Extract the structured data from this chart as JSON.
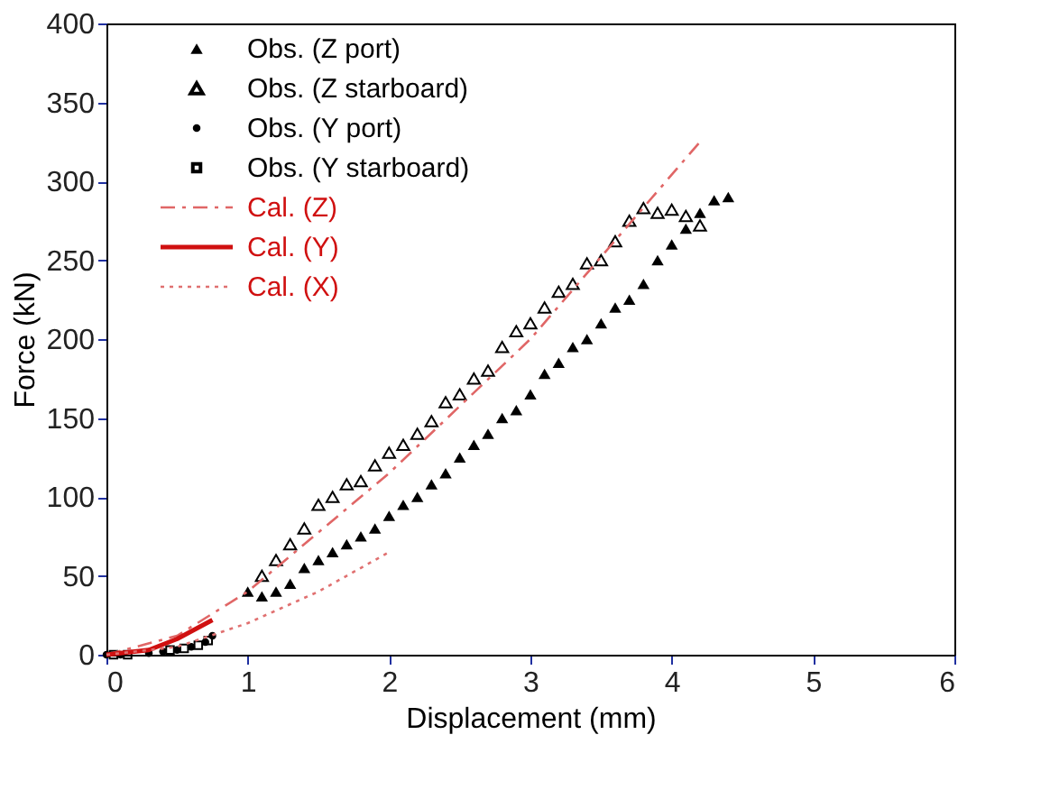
{
  "chart_data": {
    "type": "scatter",
    "xlabel": "Displacement (mm)",
    "ylabel": "Force (kN)",
    "xlim": [
      0,
      6
    ],
    "xticks": [
      0,
      1,
      2,
      3,
      4,
      5,
      6
    ],
    "ylim": [
      0,
      400
    ],
    "yticks": [
      0,
      50,
      100,
      150,
      200,
      250,
      300,
      350,
      400
    ],
    "grid": false,
    "legend": "top left",
    "series": [
      {
        "name": "Obs. (Z port)",
        "marker": "triangle",
        "color": "#000000",
        "x": [
          1.0,
          1.1,
          1.2,
          1.3,
          1.4,
          1.5,
          1.6,
          1.7,
          1.8,
          1.9,
          2.0,
          2.1,
          2.2,
          2.3,
          2.4,
          2.5,
          2.6,
          2.7,
          2.8,
          2.9,
          3.0,
          3.1,
          3.2,
          3.3,
          3.4,
          3.5,
          3.6,
          3.7,
          3.8,
          3.9,
          4.0,
          4.1,
          4.2,
          4.3,
          4.4
        ],
        "values": [
          40,
          37,
          40,
          45,
          55,
          60,
          65,
          70,
          75,
          80,
          88,
          95,
          100,
          108,
          115,
          125,
          133,
          140,
          150,
          155,
          165,
          178,
          185,
          195,
          200,
          210,
          220,
          225,
          235,
          250,
          260,
          270,
          280,
          288,
          290
        ]
      },
      {
        "name": "Obs. (Z starboard)",
        "marker": "triangle_open",
        "color": "#000000",
        "x": [
          1.1,
          1.2,
          1.3,
          1.4,
          1.5,
          1.6,
          1.7,
          1.8,
          1.9,
          2.0,
          2.1,
          2.2,
          2.3,
          2.4,
          2.5,
          2.6,
          2.7,
          2.8,
          2.9,
          3.0,
          3.1,
          3.2,
          3.3,
          3.4,
          3.5,
          3.6,
          3.7,
          3.8,
          3.9,
          4.0,
          4.1,
          4.2
        ],
        "values": [
          50,
          60,
          70,
          80,
          95,
          100,
          108,
          110,
          120,
          128,
          133,
          140,
          148,
          160,
          165,
          175,
          180,
          195,
          205,
          210,
          220,
          230,
          235,
          248,
          250,
          262,
          275,
          283,
          280,
          282,
          278,
          272
        ]
      },
      {
        "name": "Obs. (Y port)",
        "marker": "circle",
        "color": "#000000",
        "x": [
          0,
          0.1,
          0.3,
          0.4,
          0.5,
          0.6,
          0.7,
          0.75
        ],
        "values": [
          0,
          0,
          1,
          2,
          3,
          5,
          8,
          12
        ]
      },
      {
        "name": "Obs. (Y starboard)",
        "marker": "square_open",
        "color": "#000000",
        "x": [
          0.05,
          0.15,
          0.45,
          0.55,
          0.65,
          0.72
        ],
        "values": [
          0,
          0,
          3,
          4,
          6,
          9
        ]
      },
      {
        "name": "Cal. (Z)",
        "type": "line",
        "line_style": "dashdot",
        "color": "#e06666",
        "x": [
          0,
          0.5,
          1,
          2,
          3,
          4.2
        ],
        "values": [
          0,
          12,
          40,
          115,
          200,
          325
        ]
      },
      {
        "name": "Cal. (Y)",
        "type": "line",
        "line_style": "solid",
        "color": "#d01010",
        "x": [
          0,
          0.3,
          0.5,
          0.75
        ],
        "values": [
          0,
          3,
          10,
          22
        ]
      },
      {
        "name": "Cal. (X)",
        "type": "line",
        "line_style": "dotted",
        "color": "#e07070",
        "x": [
          0,
          0.5,
          1,
          1.5,
          2
        ],
        "values": [
          0,
          5,
          20,
          40,
          65
        ]
      }
    ]
  }
}
